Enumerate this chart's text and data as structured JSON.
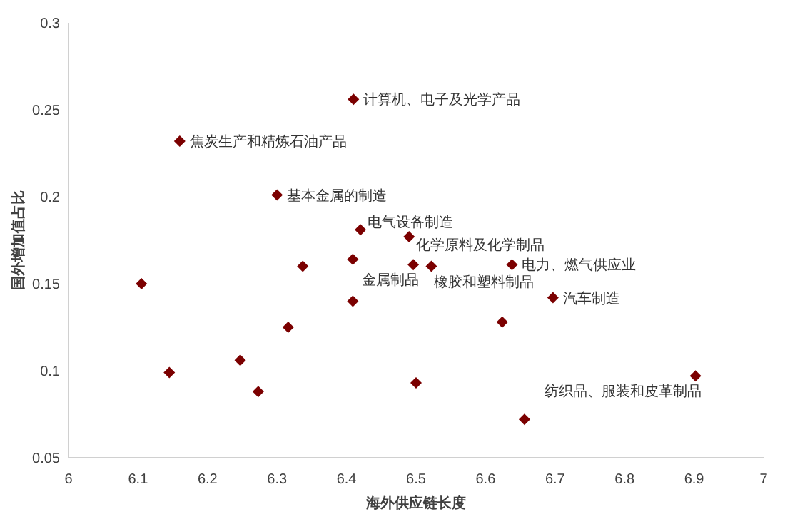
{
  "chart_data": {
    "type": "scatter",
    "xlabel": "海外供应链长度",
    "ylabel": "国外增加值占比",
    "x": [
      6.41,
      6.16,
      6.3,
      6.42,
      6.49,
      6.105,
      6.145,
      6.247,
      6.273,
      6.316,
      6.337,
      6.409,
      6.409,
      6.496,
      6.522,
      6.638,
      6.697,
      6.624,
      6.5,
      6.902,
      6.656
    ],
    "series": [
      {
        "color": "#7b0000",
        "values": [
          0.256,
          0.232,
          0.201,
          0.181,
          0.177,
          0.15,
          0.099,
          0.106,
          0.088,
          0.125,
          0.16,
          0.164,
          0.14,
          0.161,
          0.16,
          0.161,
          0.142,
          0.128,
          0.093,
          0.097,
          0.072
        ]
      }
    ],
    "xlim": [
      6,
      7
    ],
    "xticks": [
      6,
      6.1,
      6.2,
      6.3,
      6.4,
      6.5,
      6.6,
      6.7,
      6.8,
      6.9,
      7
    ],
    "ylim": [
      0.05,
      0.3
    ],
    "yticks": [
      0.05,
      0.1,
      0.15,
      0.2,
      0.25,
      0.3
    ],
    "marker": "diamond",
    "grid": false,
    "annotations": [
      {
        "text": "计算机、电子及光学产品",
        "x": 6.41,
        "y": 0.256
      },
      {
        "text": "焦炭生产和精炼石油产品",
        "x": 6.16,
        "y": 0.232
      },
      {
        "text": "基本金属的制造",
        "x": 6.3,
        "y": 0.201
      },
      {
        "text": "电气设备制造",
        "x": 6.42,
        "y": 0.181
      },
      {
        "text": "化学原料及化学制品",
        "x": 6.49,
        "y": 0.177
      },
      {
        "text": "电力、燃气供应业",
        "x": 6.638,
        "y": 0.161
      },
      {
        "text": "金属制品",
        "x": 6.496,
        "y": 0.161
      },
      {
        "text": "橡胶和塑料制品",
        "x": 6.522,
        "y": 0.16
      },
      {
        "text": "汽车制造",
        "x": 6.697,
        "y": 0.142
      },
      {
        "text": "纺织品、服装和皮革制品",
        "x": 6.902,
        "y": 0.097
      }
    ]
  }
}
